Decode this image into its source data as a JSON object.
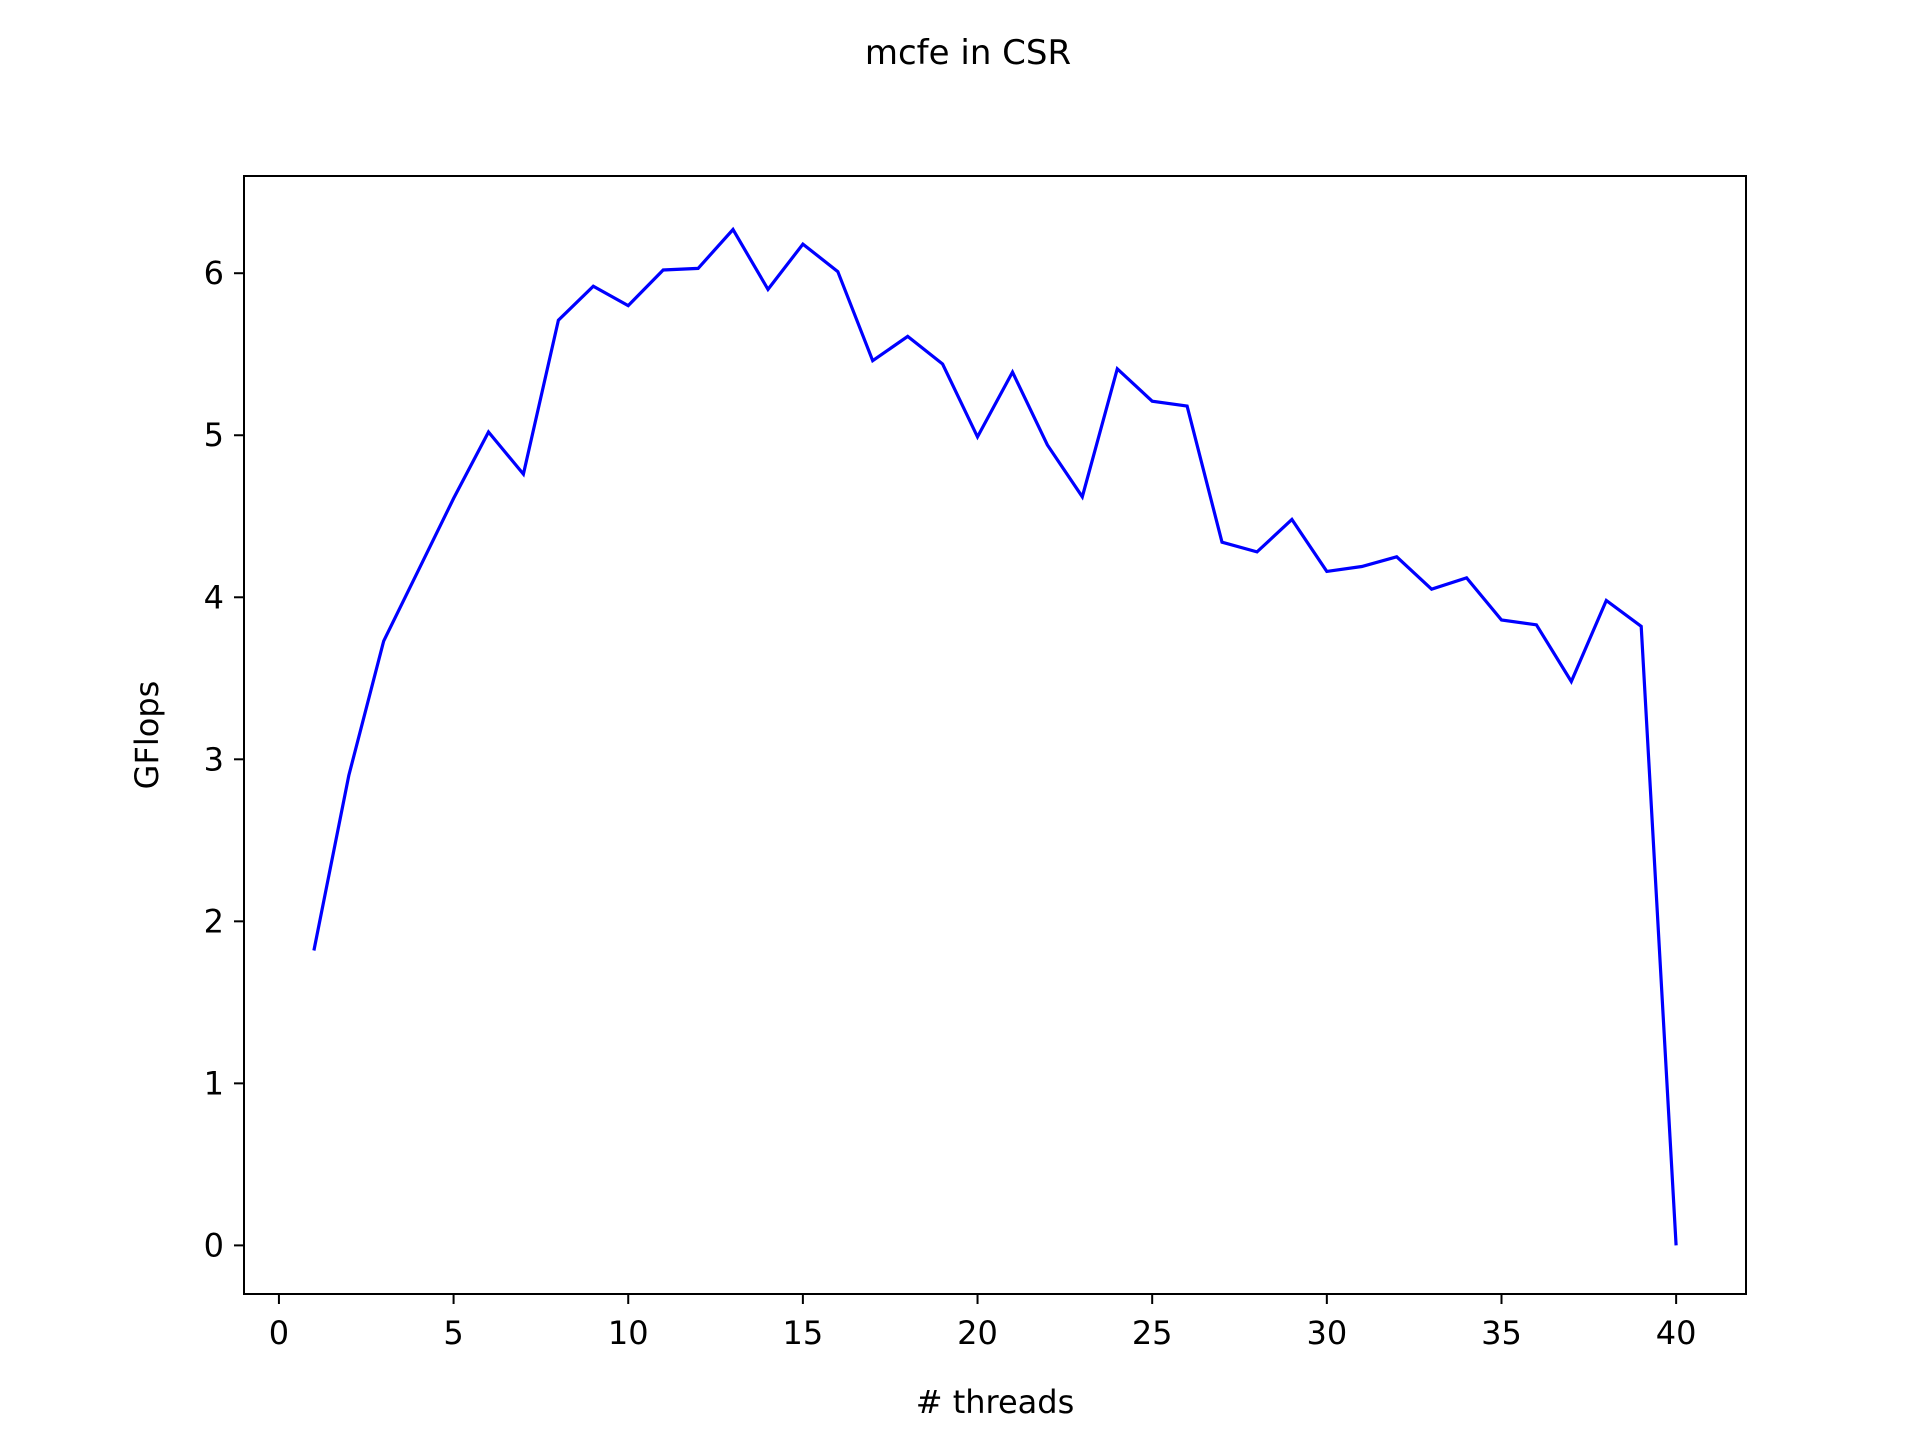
{
  "chart_data": {
    "type": "line",
    "title": "mcfe in CSR",
    "xlabel": "# threads",
    "ylabel": "GFlops",
    "xlim": [
      -1,
      42
    ],
    "ylim": [
      -0.3,
      6.6
    ],
    "xticks": [
      0,
      5,
      10,
      15,
      20,
      25,
      30,
      35,
      40
    ],
    "yticks": [
      0,
      1,
      2,
      3,
      4,
      5,
      6
    ],
    "grid": false,
    "series": [
      {
        "color": "#0000ff",
        "x": [
          1,
          2,
          3,
          4,
          5,
          6,
          7,
          8,
          9,
          10,
          11,
          12,
          13,
          14,
          15,
          16,
          17,
          18,
          19,
          20,
          21,
          22,
          23,
          24,
          25,
          26,
          27,
          28,
          29,
          30,
          31,
          32,
          33,
          34,
          35,
          36,
          37,
          38,
          39,
          40
        ],
        "y": [
          1.82,
          2.9,
          3.73,
          4.17,
          4.61,
          5.02,
          4.76,
          5.71,
          5.92,
          5.8,
          6.02,
          6.03,
          6.27,
          5.9,
          6.18,
          6.01,
          5.46,
          5.61,
          5.44,
          4.99,
          5.39,
          4.94,
          4.62,
          5.41,
          5.21,
          5.18,
          4.34,
          4.28,
          4.48,
          4.16,
          4.19,
          4.25,
          4.05,
          4.12,
          3.86,
          3.83,
          3.48,
          3.98,
          3.82,
          0.0
        ]
      }
    ]
  }
}
